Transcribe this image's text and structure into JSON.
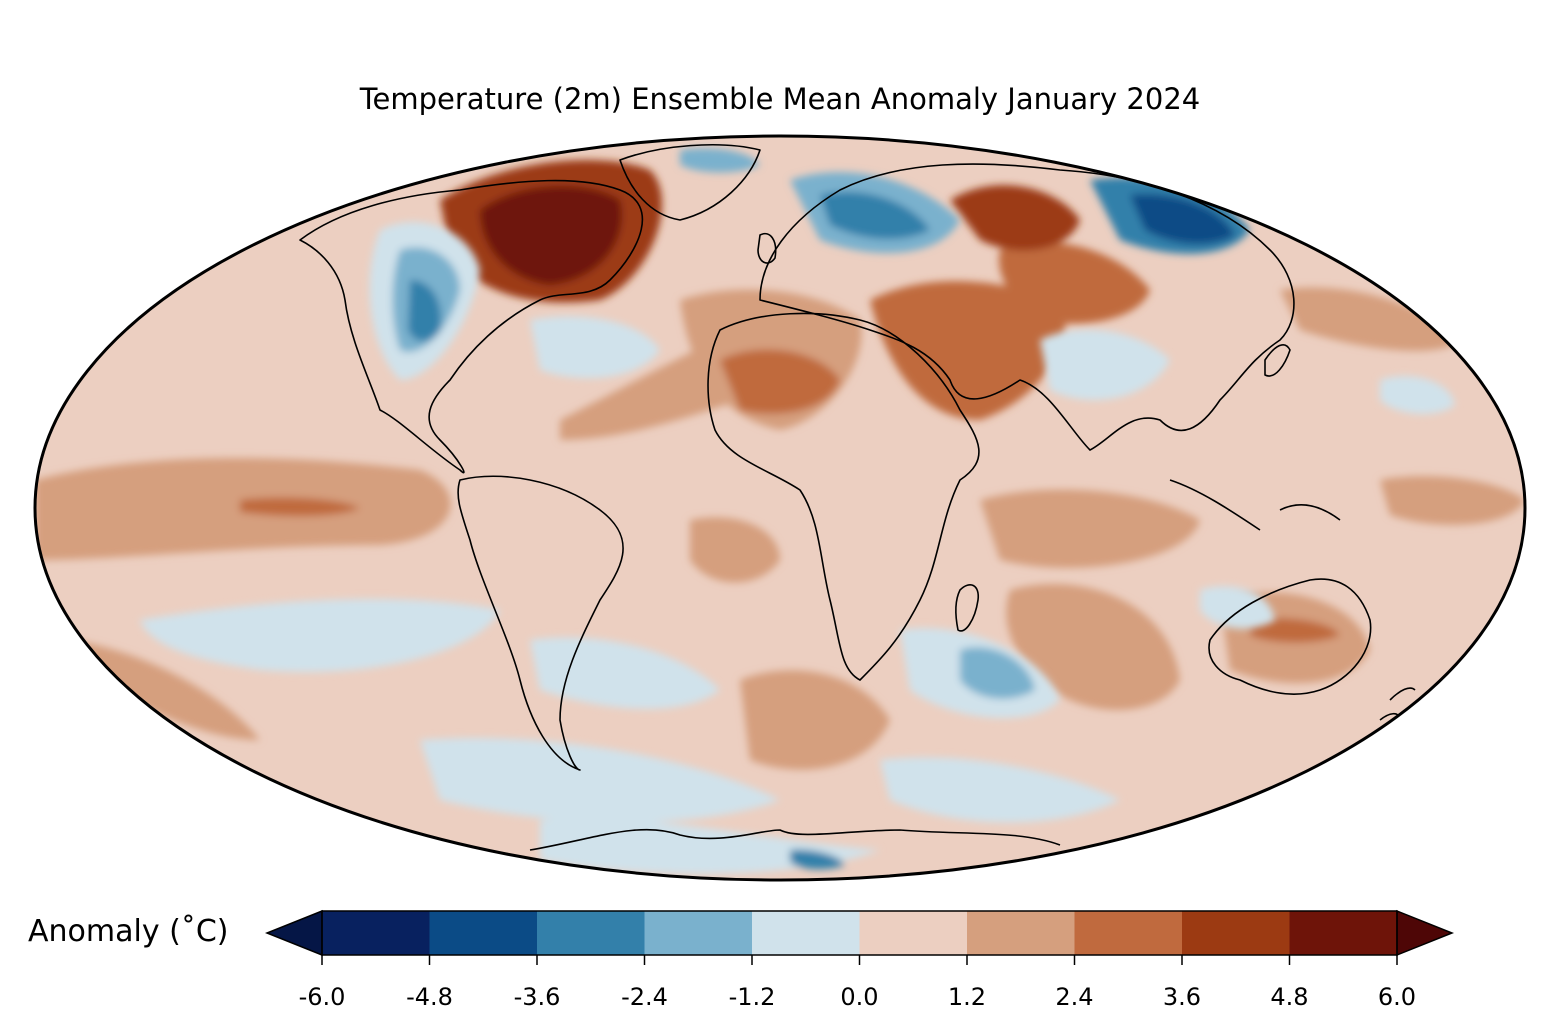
{
  "title": "Temperature (2m) Ensemble Mean Anomaly January 2024",
  "colorbar": {
    "label": "Anomaly (˚C)",
    "ticks": [
      "-6.0",
      "-4.8",
      "-3.6",
      "-2.4",
      "-1.2",
      "0.0",
      "1.2",
      "2.4",
      "3.6",
      "4.8",
      "6.0"
    ],
    "colors": [
      "#08215f",
      "#0b4b86",
      "#3380aa",
      "#7ab1cd",
      "#d0e2eb",
      "#eccfc1",
      "#d59f7e",
      "#c06a3e",
      "#9c3a12",
      "#6e1409"
    ],
    "under_color": "#051646",
    "over_color": "#4e0606"
  },
  "map": {
    "projection": "Mollweide",
    "ocean_base_color": "#eccfc1"
  }
}
